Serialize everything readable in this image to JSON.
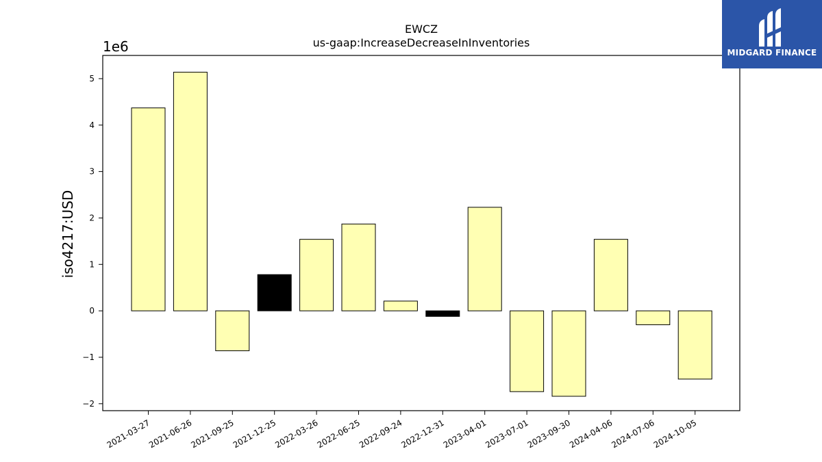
{
  "chart_data": {
    "type": "bar",
    "title": "EWCZ",
    "subtitle": "us-gaap:IncreaseDecreaseInInventories",
    "ylabel": "iso4217:USD",
    "xlabel": "",
    "scale_label": "1e6",
    "ylim": [
      -2.15,
      5.5
    ],
    "yticks": [
      -2,
      -1,
      0,
      1,
      2,
      3,
      4,
      5
    ],
    "ytick_labels": [
      "−2",
      "−1",
      "0",
      "1",
      "2",
      "3",
      "4",
      "5"
    ],
    "categories": [
      "2021-03-27",
      "2021-06-26",
      "2021-09-25",
      "2021-12-25",
      "2022-03-26",
      "2022-06-25",
      "2022-09-24",
      "2022-12-31",
      "2023-04-01",
      "2023-07-01",
      "2023-09-30",
      "2024-04-06",
      "2024-07-06",
      "2024-10-05"
    ],
    "values": [
      4.37,
      5.14,
      -0.86,
      0.78,
      1.54,
      1.87,
      0.21,
      -0.12,
      2.23,
      -1.74,
      -1.84,
      1.54,
      -0.3,
      -1.47
    ],
    "bar_colors": [
      "#ffffb3",
      "#ffffb3",
      "#ffffb3",
      "#000000",
      "#ffffb3",
      "#ffffb3",
      "#ffffb3",
      "#000000",
      "#ffffb3",
      "#ffffb3",
      "#ffffb3",
      "#ffffb3",
      "#ffffb3",
      "#ffffb3"
    ],
    "grid": false
  },
  "logo": {
    "text": "MIDGARD FINANCE",
    "background": "#2b55a8"
  }
}
